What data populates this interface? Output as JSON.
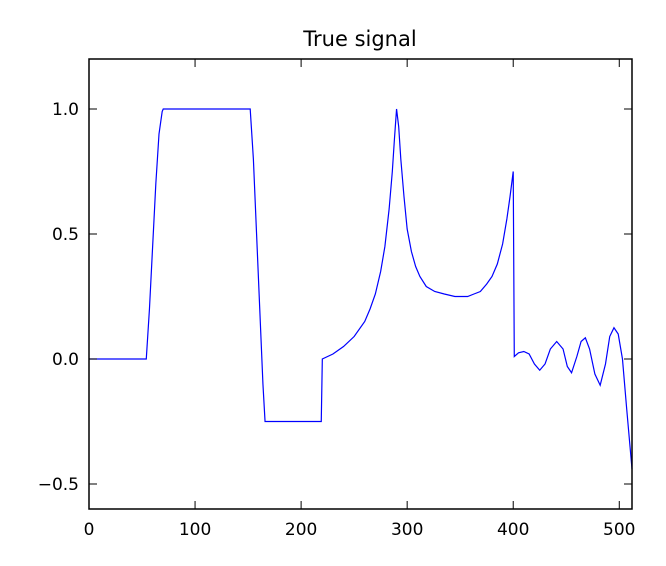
{
  "chart_data": {
    "type": "line",
    "title": "True signal",
    "x": [
      0,
      54,
      57,
      60,
      63,
      66,
      69,
      70,
      152,
      155,
      158,
      161,
      164,
      166,
      219,
      220,
      230,
      240,
      250,
      260,
      265,
      270,
      275,
      279,
      283,
      286,
      288,
      290,
      292,
      294,
      297,
      300,
      304,
      308,
      312,
      318,
      326,
      335,
      345,
      357,
      363,
      369,
      375,
      380,
      385,
      390,
      394,
      397,
      400,
      401,
      405,
      410,
      415,
      420,
      425,
      430,
      435,
      441,
      447,
      451,
      455,
      460,
      464,
      468,
      472,
      477,
      482,
      487,
      491,
      495,
      499,
      503,
      507,
      512
    ],
    "values": [
      0,
      0,
      0.2,
      0.45,
      0.7,
      0.9,
      0.99,
      1,
      1,
      0.8,
      0.5,
      0.2,
      -0.1,
      -0.25,
      -0.25,
      0,
      0.02,
      0.05,
      0.09,
      0.15,
      0.2,
      0.26,
      0.35,
      0.45,
      0.6,
      0.75,
      0.88,
      1.0,
      0.93,
      0.8,
      0.65,
      0.52,
      0.43,
      0.37,
      0.33,
      0.29,
      0.27,
      0.26,
      0.25,
      0.25,
      0.26,
      0.27,
      0.3,
      0.33,
      0.38,
      0.46,
      0.56,
      0.65,
      0.75,
      0.01,
      0.025,
      0.03,
      0.02,
      -0.02,
      -0.045,
      -0.02,
      0.04,
      0.07,
      0.04,
      -0.03,
      -0.055,
      0.01,
      0.07,
      0.085,
      0.04,
      -0.06,
      -0.105,
      -0.02,
      0.09,
      0.125,
      0.1,
      0.0,
      -0.2,
      -0.44
    ],
    "color": "#0000ff",
    "xlim": [
      0,
      512
    ],
    "xticks": [
      0,
      100,
      200,
      300,
      400,
      500
    ],
    "ylim": [
      -0.6,
      1.2
    ],
    "yticks": [
      {
        "value": -0.5,
        "label": "−0.5"
      },
      {
        "value": 0,
        "label": "0.0"
      },
      {
        "value": 0.5,
        "label": "0.5"
      },
      {
        "value": 1,
        "label": "1.0"
      }
    ]
  }
}
